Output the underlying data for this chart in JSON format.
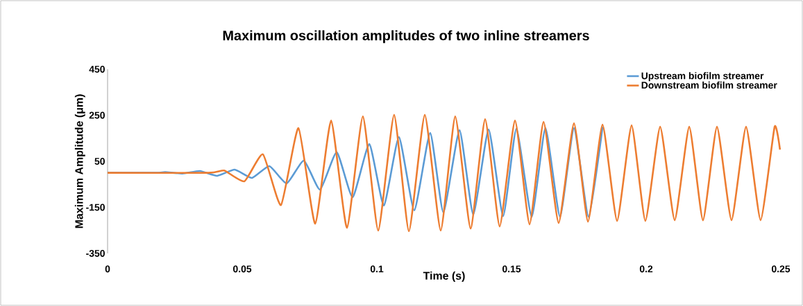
{
  "chart_data": {
    "type": "line",
    "title": "Maximum oscillation amplitudes of two inline streamers",
    "xlabel": "Time (s)",
    "ylabel": "Maximum Amplitude (μm)",
    "xlim": [
      0,
      0.25
    ],
    "ylim": [
      -350,
      450
    ],
    "xticks": [
      0,
      0.05,
      0.1,
      0.15,
      0.2,
      0.25
    ],
    "yticks": [
      -350,
      -150,
      50,
      250,
      450
    ],
    "legend": "top right",
    "series": [
      {
        "name": "Upstream biofilm streamer",
        "color": "#5b9bd5",
        "x": [
          0,
          0.018,
          0.0214,
          0.0278,
          0.0343,
          0.0407,
          0.0472,
          0.0536,
          0.0601,
          0.0665,
          0.0729,
          0.0789,
          0.0851,
          0.091,
          0.0972,
          0.1026,
          0.1082,
          0.1139,
          0.1198,
          0.1247,
          0.1307,
          0.1358,
          0.1415,
          0.1469,
          0.1518,
          0.1575,
          0.1626,
          0.168,
          0.1732,
          0.1786,
          0.1838
        ],
        "values": [
          0,
          0,
          3,
          -3,
          8,
          -13,
          14,
          -22,
          29,
          -46,
          53,
          -73,
          89,
          -106,
          125,
          -142,
          155,
          -163,
          173,
          -172,
          185,
          -181,
          188,
          -188,
          191,
          -191,
          194,
          -191,
          194,
          -191,
          200
        ]
      },
      {
        "name": "Downstream biofilm streamer",
        "color": "#ed7d31",
        "x": [
          0,
          0.0374,
          0.0433,
          0.0508,
          0.0577,
          0.0644,
          0.0709,
          0.0771,
          0.083,
          0.0889,
          0.0948,
          0.1005,
          0.1064,
          0.1119,
          0.1178,
          0.1237,
          0.1291,
          0.1348,
          0.1402,
          0.1456,
          0.1513,
          0.1567,
          0.1619,
          0.1675,
          0.1732,
          0.1784,
          0.1838,
          0.1892,
          0.1946,
          0.1997,
          0.2052,
          0.2106,
          0.216,
          0.2211,
          0.2263,
          0.2317,
          0.2371,
          0.2425,
          0.2477,
          0.2497
        ],
        "values": [
          0,
          0,
          10,
          -37,
          80,
          -140,
          194,
          -221,
          227,
          -239,
          245,
          -251,
          252,
          -254,
          252,
          -251,
          245,
          -242,
          233,
          -233,
          227,
          -224,
          221,
          -218,
          215,
          -212,
          209,
          -209,
          206,
          -209,
          200,
          -206,
          200,
          -206,
          200,
          -206,
          200,
          -206,
          200,
          101
        ]
      }
    ]
  }
}
